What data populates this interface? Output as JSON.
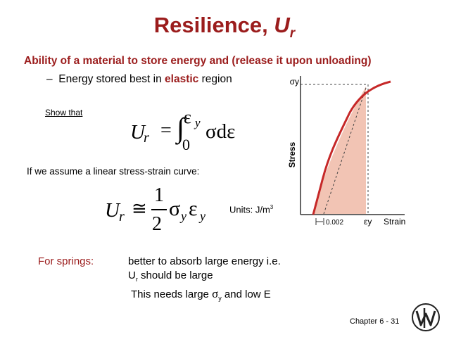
{
  "title": {
    "text": "Resilience,",
    "var": "U",
    "sub": "r"
  },
  "subtitle": "Ability of a material to store energy and (release it upon unloading)",
  "bullet": {
    "dash": "–",
    "pre": "Energy stored best in",
    "highlight": "elastic",
    "post": "region"
  },
  "show_that": "Show that",
  "eq1": {
    "lhs": "U",
    "lhs_sub": "r",
    "rel": "=",
    "integral": "∫",
    "lower": "0",
    "upper": "ε",
    "upper_sub": "y",
    "integrand": "σdε"
  },
  "linear_text": "If we assume a linear stress-strain curve:",
  "eq2": {
    "lhs": "U",
    "lhs_sub": "r",
    "rel": "≅",
    "num": "1",
    "den": "2",
    "sigma": "σ",
    "sigma_sub": "y",
    "eps": "ε",
    "eps_sub": "y"
  },
  "units": {
    "text": "Units: J/m",
    "sup": "3"
  },
  "springs": {
    "label": "For springs:",
    "line1": "better to absorb large energy i.e.",
    "line2_var": "U",
    "line2_sub": "r",
    "line2_text": " should be large",
    "line3_pre": "This needs large ",
    "line3_sigma": "σ",
    "line3_sub": "y",
    "line3_post": " and low E"
  },
  "figure": {
    "y_tick": "σy",
    "x_tick": "εy",
    "offset_label": "0.002",
    "x_axis_label": "Strain",
    "y_axis_label": "Stress",
    "colors": {
      "curve": "#c62828",
      "fill": "#f2c4b4"
    }
  },
  "footer": {
    "chapter": "Chapter 6 -  31"
  },
  "logo": {
    "icon": "wiley-logo-icon"
  }
}
